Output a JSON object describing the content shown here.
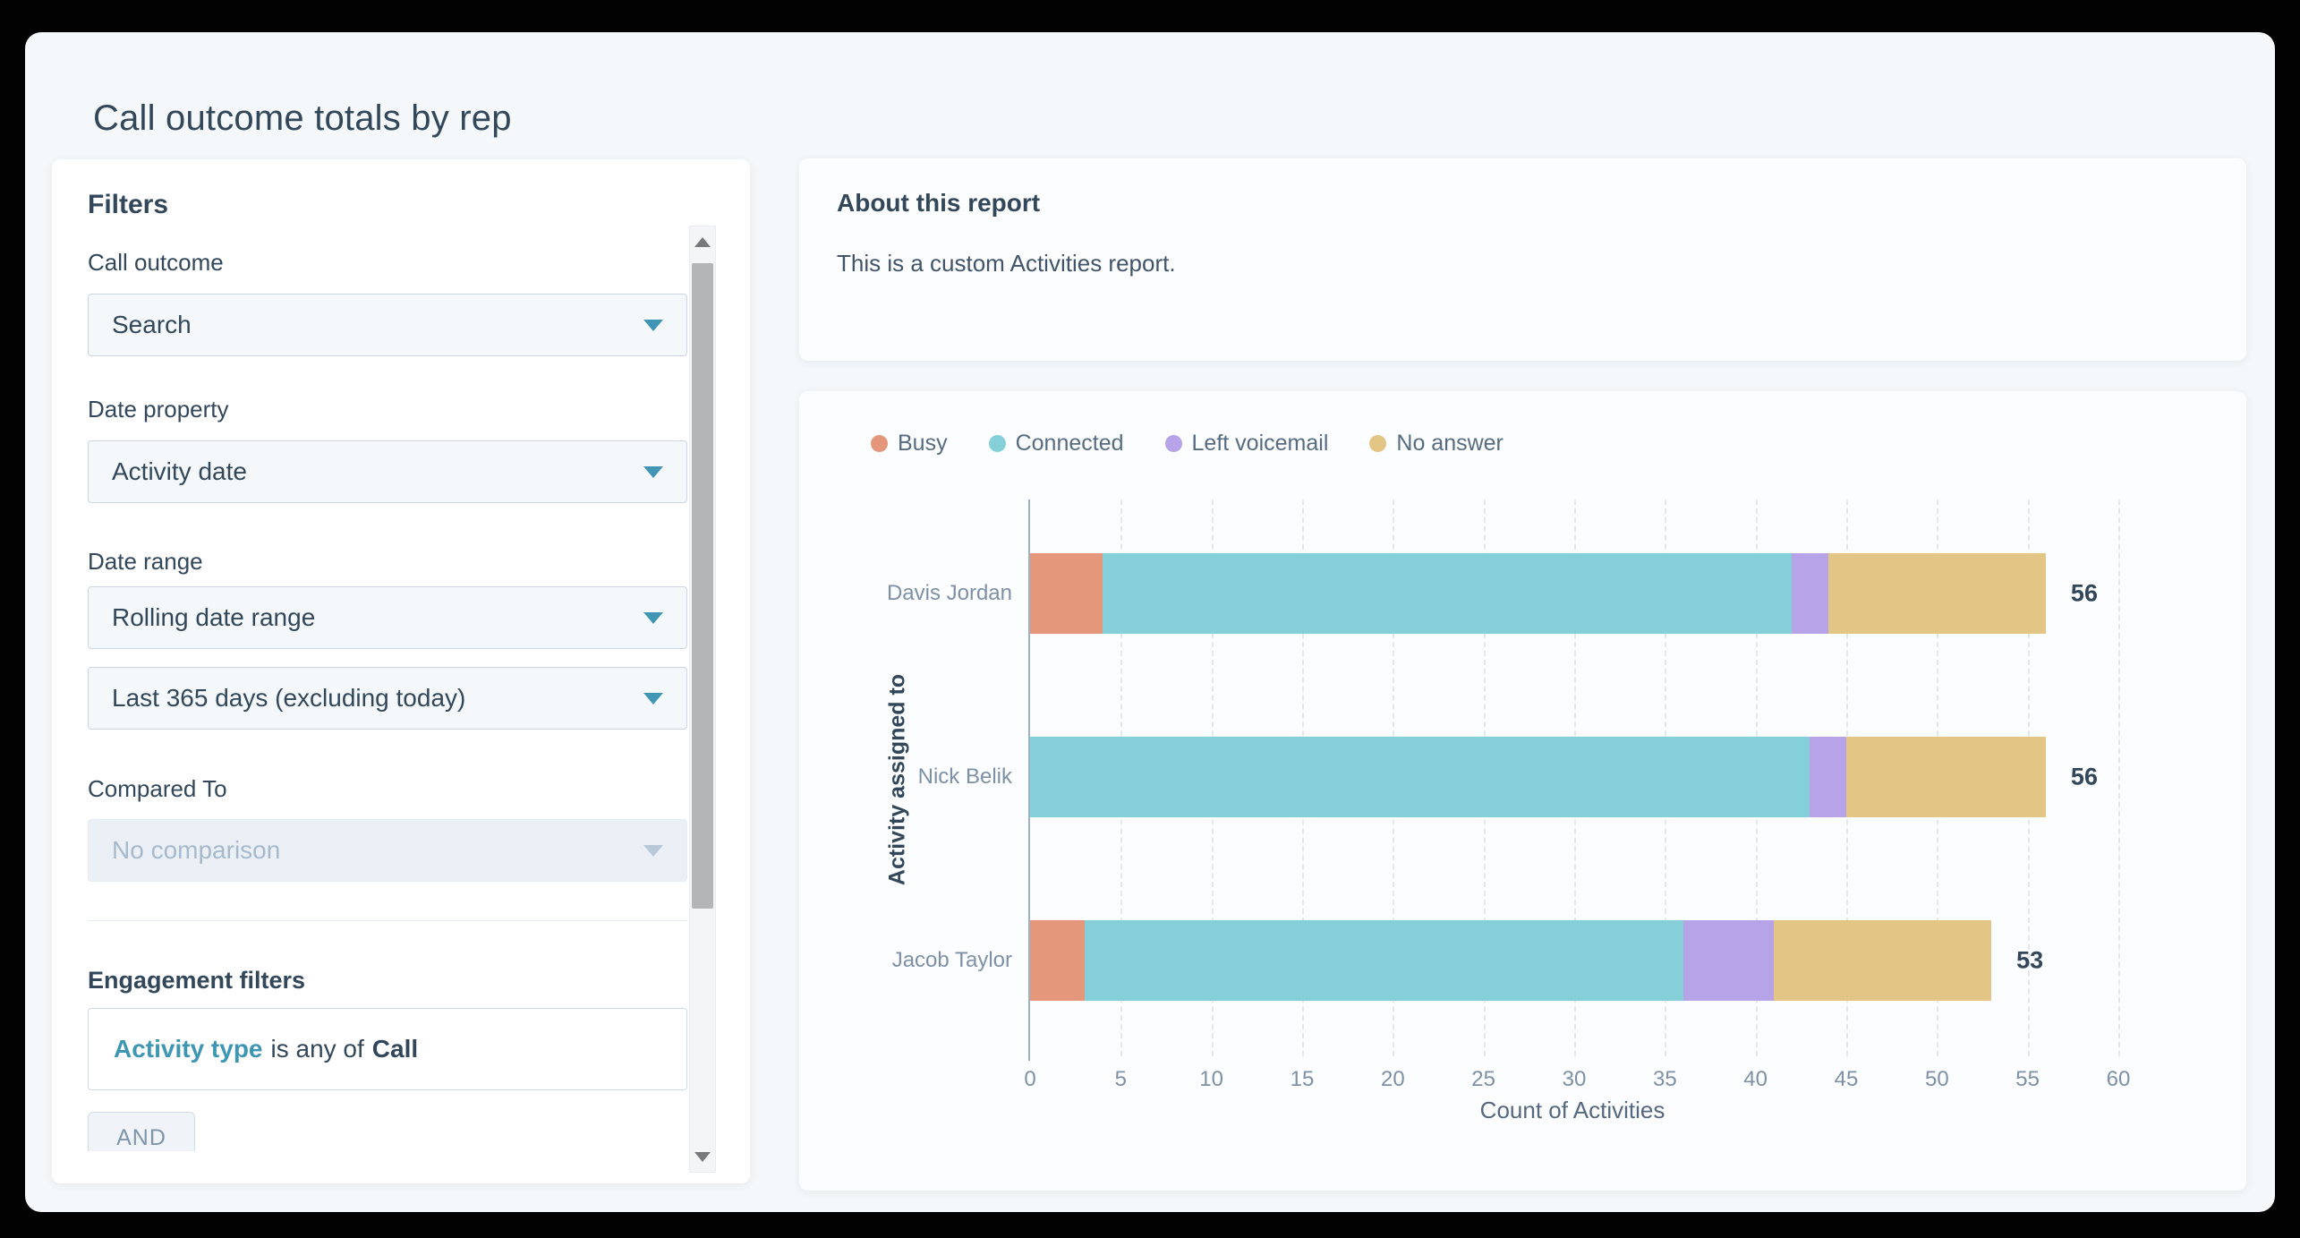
{
  "page": {
    "title": "Call outcome totals by rep"
  },
  "filters_panel": {
    "title": "Filters",
    "fields": {
      "call_outcome": {
        "label": "Call outcome",
        "value": "Search"
      },
      "date_property": {
        "label": "Date property",
        "value": "Activity date"
      },
      "date_range": {
        "label": "Date range",
        "value": "Rolling date range",
        "sub_value": "Last 365 days (excluding today)"
      },
      "compared_to": {
        "label": "Compared To",
        "value": "No comparison",
        "disabled": true
      }
    },
    "engagement": {
      "heading": "Engagement filters",
      "rule": {
        "property": "Activity type",
        "operator": "is any of",
        "value": "Call"
      },
      "and_button": "AND"
    }
  },
  "about_card": {
    "heading": "About this report",
    "body": "This is a custom Activities report."
  },
  "chart_data": {
    "type": "bar",
    "orientation": "horizontal",
    "stacked": true,
    "categories": [
      "Davis Jordan",
      "Nick Belik",
      "Jacob Taylor"
    ],
    "series": [
      {
        "name": "Busy",
        "color": "#e5977b",
        "values": [
          4,
          0,
          3
        ]
      },
      {
        "name": "Connected",
        "color": "#85d0d8",
        "values": [
          38,
          43,
          33
        ]
      },
      {
        "name": "Left voicemail",
        "color": "#b7a3e7",
        "values": [
          2,
          2,
          5
        ]
      },
      {
        "name": "No answer",
        "color": "#e3c685",
        "values": [
          12,
          11,
          12
        ]
      }
    ],
    "totals": [
      56,
      56,
      53
    ],
    "xlabel": "Count of Activities",
    "ylabel": "Activity assigned to",
    "xlim": [
      0,
      60
    ],
    "xticks": [
      0,
      5,
      10,
      15,
      20,
      25,
      30,
      35,
      40,
      45,
      50,
      55,
      60
    ],
    "grid": "dashed-vertical",
    "legend_position": "top-left"
  },
  "colors": {
    "heading_text": "#33475b",
    "muted_text": "#7e90a8",
    "accent_caret": "#4296b5",
    "filter_link": "#3e96b4",
    "page_background": "#f5f8fa"
  }
}
